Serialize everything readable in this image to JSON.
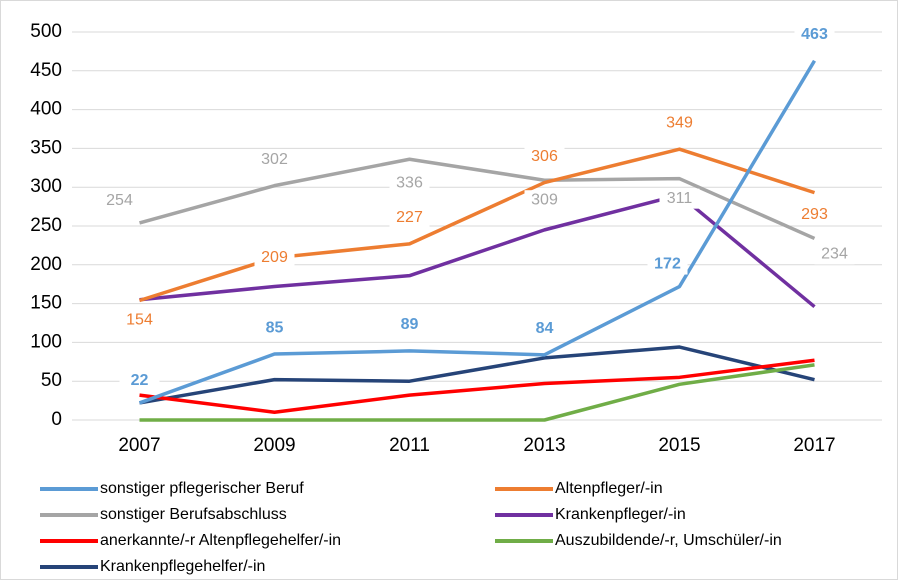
{
  "chart_data": {
    "type": "line",
    "categories": [
      "2007",
      "2009",
      "2011",
      "2013",
      "2015",
      "2017"
    ],
    "ylim": [
      0,
      500
    ],
    "yticks": [
      0,
      50,
      100,
      150,
      200,
      250,
      300,
      350,
      400,
      450,
      500
    ],
    "grid": true,
    "series": [
      {
        "name": "sonstiger pflegerischer Beruf",
        "color": "#5b9bd5",
        "values": [
          22,
          85,
          89,
          84,
          172,
          463
        ],
        "show_labels": true,
        "bold_labels": true
      },
      {
        "name": "Altenpfleger/-in",
        "color": "#ed7d31",
        "values": [
          154,
          209,
          227,
          306,
          349,
          293
        ],
        "show_labels": true
      },
      {
        "name": "sonstiger Berufsabschluss",
        "color": "#a5a5a5",
        "values": [
          254,
          302,
          336,
          309,
          311,
          234
        ],
        "show_labels": true
      },
      {
        "name": "Krankenpfleger/-in",
        "color": "#7030a0",
        "values": [
          155,
          172,
          186,
          245,
          290,
          146
        ]
      },
      {
        "name": "anerkannte/-r Altenpflegehelfer/-in",
        "color": "#ff0000",
        "values": [
          32,
          10,
          32,
          47,
          55,
          77
        ]
      },
      {
        "name": "Auszubildende/-r, Umschüler/-in",
        "color": "#70ad47",
        "values": [
          0,
          0,
          0,
          0,
          46,
          71
        ]
      },
      {
        "name": "Krankenpflegehelfer/-in",
        "color": "#264478",
        "values": [
          22,
          52,
          50,
          80,
          94,
          52
        ]
      }
    ]
  }
}
